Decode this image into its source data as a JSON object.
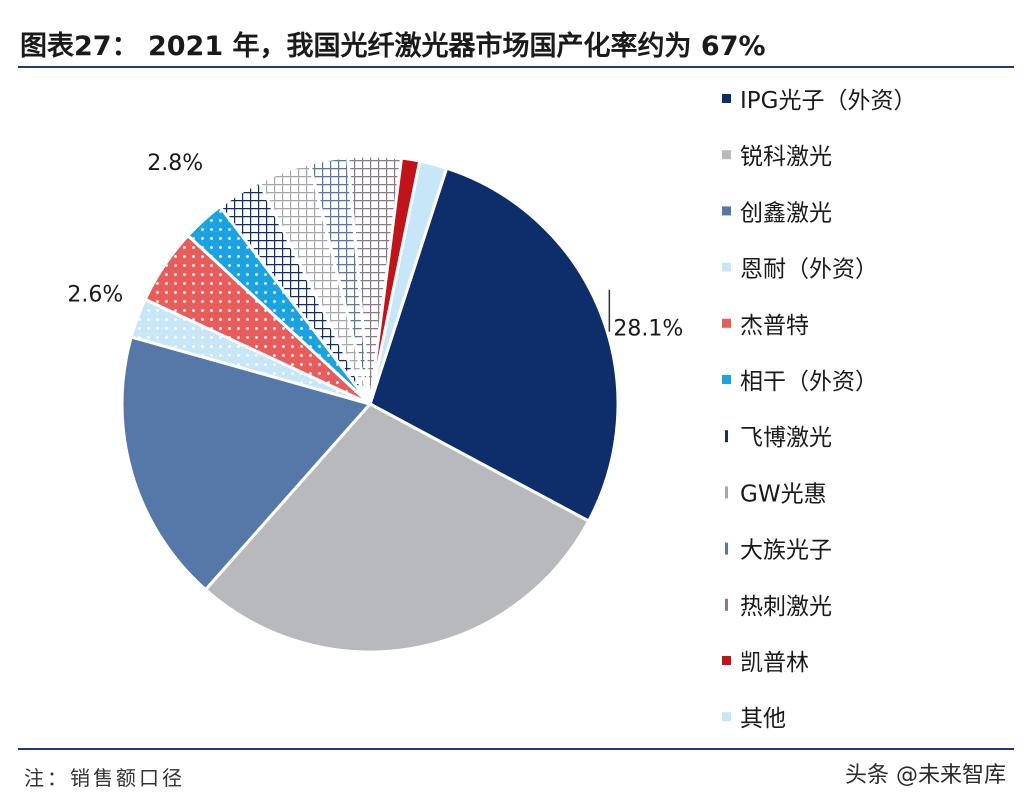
{
  "header": {
    "title": "图表27： 2021 年，我国光纤激光器市场国产化率约为 67%"
  },
  "footer": {
    "note": "注：销售额口径",
    "watermark": "头条 @未来智库"
  },
  "chart_data": {
    "type": "pie",
    "title": "图表27： 2021 年，我国光纤激光器市场国产化率约为 67%",
    "legend_position": "right",
    "series": [
      {
        "name": "IPG光子（外资）",
        "value": 28.1,
        "color": "#0d2e6b",
        "pattern": "solid"
      },
      {
        "name": "锐科激光",
        "value": 29.0,
        "color": "#b8b9bd",
        "pattern": "solid"
      },
      {
        "name": "创鑫激光",
        "value": 18.0,
        "color": "#5578a8",
        "pattern": "solid"
      },
      {
        "name": "恩耐（外资）",
        "value": 2.6,
        "color": "#c7e6f7",
        "pattern": "dots"
      },
      {
        "name": "杰普特",
        "value": 5.0,
        "color": "#e85c5c",
        "pattern": "dots"
      },
      {
        "name": "相干（外资）",
        "value": 2.8,
        "color": "#1aa3e0",
        "pattern": "dots"
      },
      {
        "name": "飞博激光",
        "value": 3.0,
        "color": "#0d2e6b",
        "pattern": "grid"
      },
      {
        "name": "GW光惠",
        "value": 3.5,
        "color": "#a7a8ac",
        "pattern": "grid"
      },
      {
        "name": "大族光子",
        "value": 2.5,
        "color": "#5578a8",
        "pattern": "grid"
      },
      {
        "name": "热刺激光",
        "value": 3.5,
        "color": "#8a7a8a",
        "pattern": "grid"
      },
      {
        "name": "凯普林",
        "value": 1.2,
        "color": "#c0141a",
        "pattern": "solid"
      },
      {
        "name": "其他",
        "value": 1.8,
        "color": "#c7e6f7",
        "pattern": "solid"
      }
    ],
    "data_labels": [
      {
        "series": "IPG光子（外资）",
        "text": "28.1%"
      },
      {
        "series": "相干（外资）",
        "text": "2.8%"
      },
      {
        "series": "恩耐（外资）",
        "text": "2.6%"
      }
    ]
  }
}
